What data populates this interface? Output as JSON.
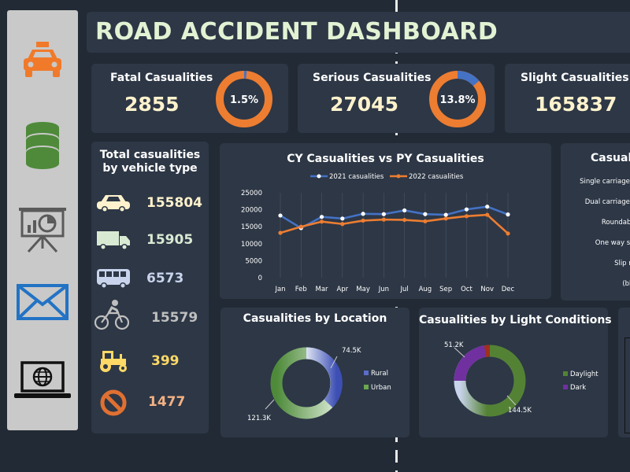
{
  "title": "ROAD ACCIDENT DASHBOARD",
  "sidebar": {
    "items": [
      {
        "name": "car-icon",
        "color": "#f07a2a"
      },
      {
        "name": "database-icon",
        "color": "#4e8a3a"
      },
      {
        "name": "presentation-icon",
        "color": "#5a5a5a"
      },
      {
        "name": "mail-icon",
        "color": "#2273c4"
      },
      {
        "name": "laptop-globe-icon",
        "color": "#111111"
      }
    ]
  },
  "kpis": [
    {
      "label": "Fatal Casualities",
      "value": "2855",
      "pct_label": "1.5%",
      "pct": 0.015
    },
    {
      "label": "Serious Casualities",
      "value": "27045",
      "pct_label": "13.8%",
      "pct": 0.138
    },
    {
      "label": "Slight Casualities",
      "value": "165837"
    }
  ],
  "vehicle_panel": {
    "title_line1": "Total casualities",
    "title_line2": "by vehicle type",
    "rows": [
      {
        "icon": "car-icon",
        "value": "155804",
        "color": "#fff2cc"
      },
      {
        "icon": "truck-icon",
        "value": "15905",
        "color": "#d9ead3"
      },
      {
        "icon": "bus-icon",
        "value": "6573",
        "color": "#c9d4ec"
      },
      {
        "icon": "bicycle-icon",
        "value": "15579",
        "color": "#bfbfbf"
      },
      {
        "icon": "tractor-icon",
        "value": "399",
        "color": "#ffd966"
      },
      {
        "icon": "other-vehicle-icon",
        "value": "1477",
        "color": "#f4b183"
      }
    ]
  },
  "line_chart": {
    "title": "CY Casualities vs PY Casualities",
    "legend": [
      "2021 casualities",
      "2022 casualities"
    ]
  },
  "road_panel": {
    "title": "Casual",
    "rows": [
      "Single carriagewa",
      "Dual carriagewa",
      "Roundabou",
      "One way stre",
      "Slip roa",
      "(blan"
    ]
  },
  "location_chart": {
    "title": "Casualities by Location",
    "label_rural": "74.5K",
    "label_urban": "121.3K",
    "legend": [
      "Rural",
      "Urban"
    ]
  },
  "light_chart": {
    "title": "Casualities by Light Conditions",
    "label_dark": "51.2K",
    "label_daylight": "144.5K",
    "legend": [
      "Daylight",
      "Dark"
    ]
  },
  "colors": {
    "series2021": "#4472c4",
    "series2022": "#ed7d31",
    "accent_green": "#548235",
    "dark_purple": "#7030a0"
  },
  "chart_data": {
    "type": "line",
    "title": "CY Casualities vs PY Casualities",
    "categories": [
      "Jan",
      "Feb",
      "Mar",
      "Apr",
      "May",
      "Jun",
      "Jul",
      "Aug",
      "Sep",
      "Oct",
      "Nov",
      "Dec"
    ],
    "series": [
      {
        "name": "2021 casualities",
        "values": [
          18300,
          14600,
          17900,
          17400,
          18800,
          18700,
          19800,
          18700,
          18500,
          20100,
          20900,
          18600
        ]
      },
      {
        "name": "2022 casualities",
        "values": [
          13200,
          15000,
          16500,
          15800,
          16800,
          17100,
          17000,
          16600,
          17400,
          18100,
          18500,
          13000
        ]
      }
    ],
    "yticks": [
      0,
      5000,
      10000,
      15000,
      20000,
      25000
    ],
    "ylim": [
      0,
      25000
    ],
    "legend_position": "top"
  }
}
